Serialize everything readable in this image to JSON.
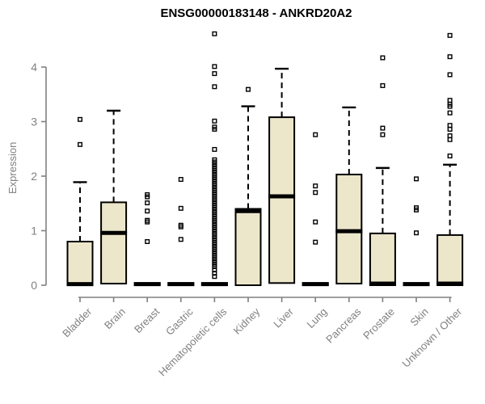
{
  "title": "ENSG00000183148 - ANKRD20A2",
  "colors": {
    "box_fill": "#ece7cb",
    "box_stroke": "#000000",
    "median": "#000000",
    "outlier": "#000000",
    "axis": "#808080",
    "title_text": "#000000",
    "background": "#ffffff"
  },
  "chart_data": {
    "type": "boxplot",
    "title": "ENSG00000183148 - ANKRD20A2",
    "xlabel": "",
    "ylabel": "Expression",
    "ylim": [
      0,
      4.65
    ],
    "yticks": [
      0,
      1,
      2,
      3,
      4
    ],
    "grid": false,
    "legend": false,
    "categories": [
      "Bladder",
      "Brain",
      "Breast",
      "Gastric",
      "Hematopoietic cells",
      "Kidney",
      "Liver",
      "Lung",
      "Pancreas",
      "Prostate",
      "Skin",
      "Unknown / Other"
    ],
    "series": [
      {
        "name": "Bladder",
        "whisker_low": 0,
        "q1": 0,
        "median": 0.02,
        "q3": 0.8,
        "whisker_high": 1.89,
        "outliers": [
          2.58,
          3.04
        ]
      },
      {
        "name": "Brain",
        "whisker_low": 0,
        "q1": 0.03,
        "median": 0.96,
        "q3": 1.52,
        "whisker_high": 3.2,
        "outliers": []
      },
      {
        "name": "Breast",
        "whisker_low": 0,
        "q1": 0,
        "median": 0.02,
        "q3": 0.04,
        "whisker_high": 0.04,
        "outliers": [
          0.8,
          1.16,
          1.19,
          1.36,
          1.51,
          1.62,
          1.66
        ]
      },
      {
        "name": "Gastric",
        "whisker_low": 0,
        "q1": 0,
        "median": 0.02,
        "q3": 0.04,
        "whisker_high": 0.04,
        "outliers": [
          0.84,
          1.07,
          1.1,
          1.41,
          1.94
        ]
      },
      {
        "name": "Hematopoietic cells",
        "whisker_low": 0,
        "q1": 0,
        "median": 0.02,
        "q3": 0.04,
        "whisker_high": 0.04,
        "outliers": [
          4.61,
          4.01,
          3.88,
          3.64,
          3.01,
          2.9,
          2.86,
          2.49,
          2.3,
          2.26,
          2.22,
          2.18,
          2.14,
          2.1,
          2.06,
          2.02,
          1.98,
          1.94,
          1.9,
          1.86,
          1.82,
          1.78,
          1.74,
          1.7,
          1.66,
          1.62,
          1.58,
          1.54,
          1.5,
          1.46,
          1.42,
          1.38,
          1.34,
          1.3,
          1.26,
          1.22,
          1.18,
          1.14,
          1.1,
          1.06,
          1.02,
          0.98,
          0.94,
          0.9,
          0.86,
          0.82,
          0.78,
          0.74,
          0.7,
          0.66,
          0.62,
          0.58,
          0.54,
          0.5,
          0.46,
          0.42,
          0.38,
          0.34,
          0.28,
          0.22,
          0.16
        ]
      },
      {
        "name": "Kidney",
        "whisker_low": 0,
        "q1": 0,
        "median": 1.36,
        "q3": 1.4,
        "whisker_high": 3.28,
        "outliers": [
          3.59
        ]
      },
      {
        "name": "Liver",
        "whisker_low": 0.04,
        "q1": 0.04,
        "median": 1.63,
        "q3": 3.08,
        "whisker_high": 3.97,
        "outliers": []
      },
      {
        "name": "Lung",
        "whisker_low": 0,
        "q1": 0,
        "median": 0.02,
        "q3": 0.04,
        "whisker_high": 0.04,
        "outliers": [
          0.79,
          1.16,
          1.7,
          1.82,
          2.76
        ]
      },
      {
        "name": "Pancreas",
        "whisker_low": 0.02,
        "q1": 0.03,
        "median": 0.99,
        "q3": 2.03,
        "whisker_high": 3.26,
        "outliers": []
      },
      {
        "name": "Prostate",
        "whisker_low": 0,
        "q1": 0,
        "median": 0.03,
        "q3": 0.95,
        "whisker_high": 2.15,
        "outliers": [
          2.76,
          2.88,
          3.66,
          4.17
        ]
      },
      {
        "name": "Skin",
        "whisker_low": 0,
        "q1": 0,
        "median": 0.02,
        "q3": 0.04,
        "whisker_high": 0.04,
        "outliers": [
          0.96,
          1.38,
          1.42,
          1.95
        ]
      },
      {
        "name": "Unknown / Other",
        "whisker_low": 0,
        "q1": 0,
        "median": 0.03,
        "q3": 0.92,
        "whisker_high": 2.21,
        "outliers": [
          2.37,
          2.67,
          2.74,
          2.86,
          2.93,
          3.16,
          3.28,
          3.32,
          3.39,
          3.86,
          4.19,
          4.58
        ]
      }
    ]
  }
}
